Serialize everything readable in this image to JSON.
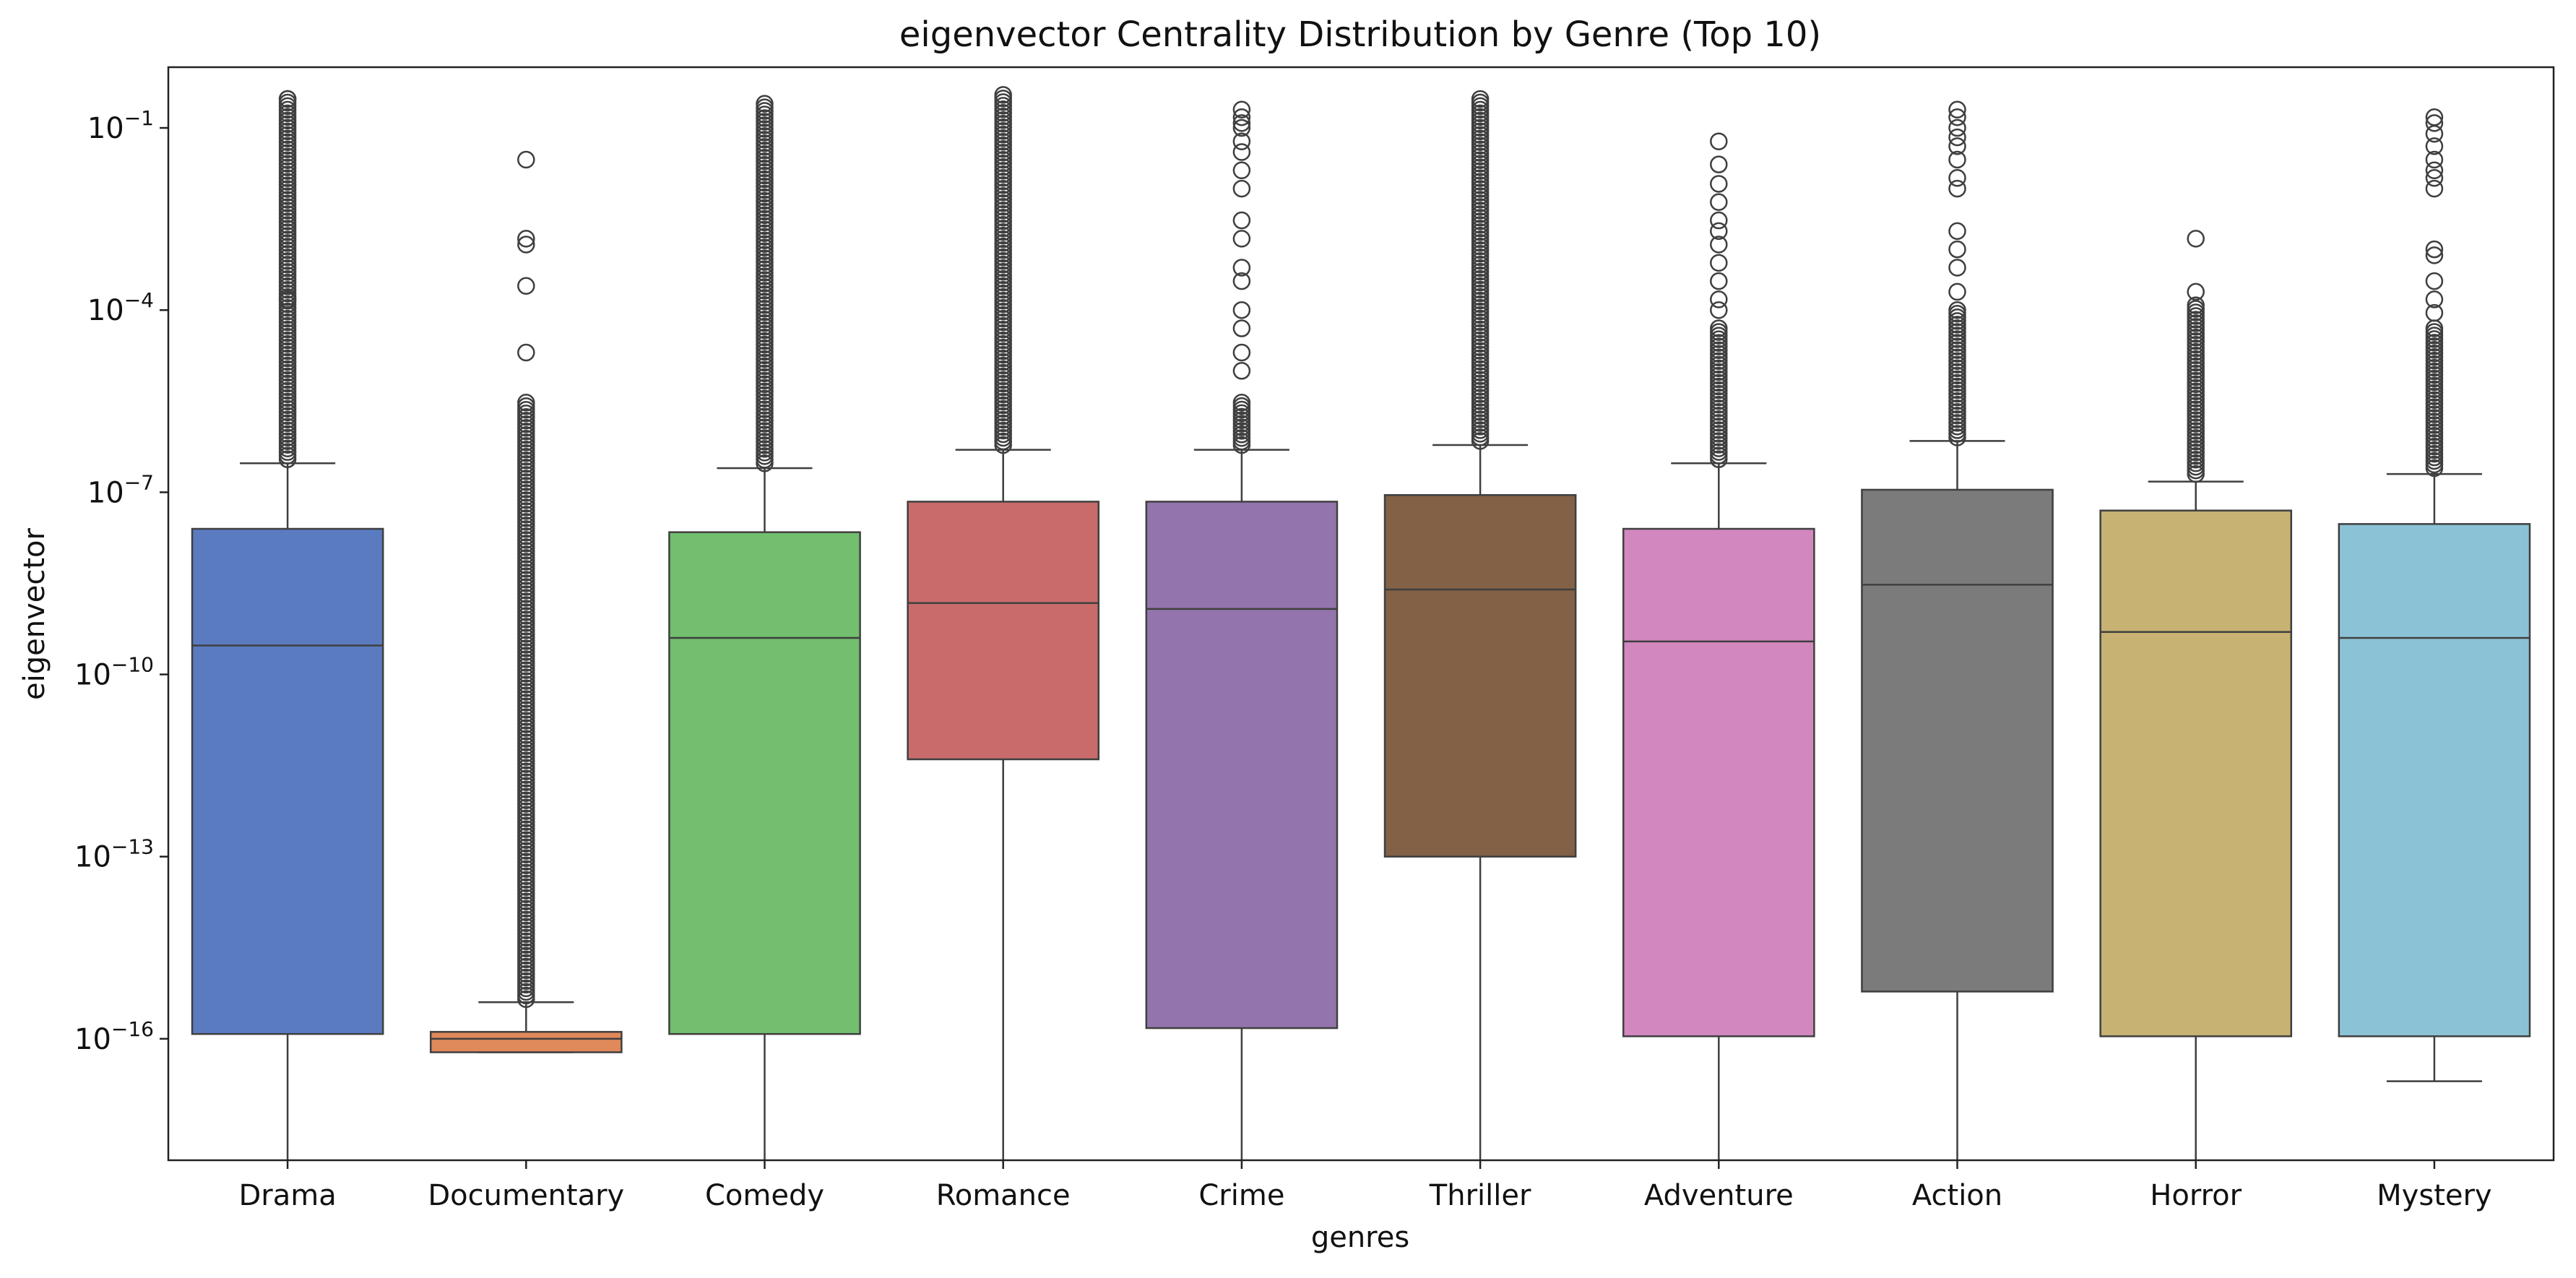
{
  "chart_data": {
    "type": "box",
    "title": "eigenvector Centrality Distribution by Genre (Top 10)",
    "xlabel": "genres",
    "ylabel": "eigenvector",
    "y_scale": "log",
    "ylim": [
      1e-18,
      1
    ],
    "y_ticks": [
      {
        "value": 1e-16,
        "base": "10",
        "exp": "−16"
      },
      {
        "value": 1e-13,
        "base": "10",
        "exp": "−13"
      },
      {
        "value": 1e-10,
        "base": "10",
        "exp": "−10"
      },
      {
        "value": 1e-07,
        "base": "10",
        "exp": "−7"
      },
      {
        "value": 0.0001,
        "base": "10",
        "exp": "−4"
      },
      {
        "value": 0.1,
        "base": "10",
        "exp": "−1"
      }
    ],
    "grid": false,
    "categories": [
      "Drama",
      "Documentary",
      "Comedy",
      "Romance",
      "Crime",
      "Thriller",
      "Adventure",
      "Action",
      "Horror",
      "Mystery"
    ],
    "colors": [
      "#5a7bc0",
      "#e0895b",
      "#72bf6f",
      "#c96b6b",
      "#9374ac",
      "#826146",
      "#d287bf",
      "#7b7b7b",
      "#c7b273",
      "#8cc2d6"
    ],
    "boxes": [
      {
        "lower_whisker": 1e-18,
        "q1": 1.2e-16,
        "median": 3e-10,
        "q3": 2.5e-08,
        "upper_whisker": 3e-07,
        "outliers_dense_from": 3.5e-07,
        "outliers_dense_to": 0.3,
        "outliers": [
          0.00015,
          0.3
        ]
      },
      {
        "lower_whisker": 6e-17,
        "q1": 6e-17,
        "median": 1e-16,
        "q3": 1.3e-16,
        "upper_whisker": 4e-16,
        "outliers_dense_from": 4.5e-16,
        "outliers_dense_to": 3e-06,
        "outliers": [
          2e-05,
          0.00025,
          0.0012,
          0.0015,
          0.03
        ]
      },
      {
        "lower_whisker": 1e-18,
        "q1": 1.2e-16,
        "median": 4e-10,
        "q3": 2.2e-08,
        "upper_whisker": 2.5e-07,
        "outliers_dense_from": 3e-07,
        "outliers_dense_to": 0.25,
        "outliers": []
      },
      {
        "lower_whisker": 1e-18,
        "q1": 4e-12,
        "median": 1.5e-09,
        "q3": 7e-08,
        "upper_whisker": 5e-07,
        "outliers_dense_from": 6e-07,
        "outliers_dense_to": 0.35,
        "outliers": []
      },
      {
        "lower_whisker": 1e-18,
        "q1": 1.5e-16,
        "median": 1.2e-09,
        "q3": 7e-08,
        "upper_whisker": 5e-07,
        "outliers_dense_from": 6e-07,
        "outliers_dense_to": 3e-06,
        "outliers": [
          1e-05,
          2e-05,
          5e-05,
          0.0001,
          0.0003,
          0.0005,
          0.0015,
          0.003,
          0.01,
          0.02,
          0.04,
          0.06,
          0.1,
          0.12,
          0.15,
          0.2
        ]
      },
      {
        "lower_whisker": 1e-18,
        "q1": 1e-13,
        "median": 2.5e-09,
        "q3": 9e-08,
        "upper_whisker": 6e-07,
        "outliers_dense_from": 7e-07,
        "outliers_dense_to": 0.3,
        "outliers": []
      },
      {
        "lower_whisker": 1e-18,
        "q1": 1.1e-16,
        "median": 3.5e-10,
        "q3": 2.5e-08,
        "upper_whisker": 3e-07,
        "outliers_dense_from": 3.5e-07,
        "outliers_dense_to": 5e-05,
        "outliers": [
          0.0001,
          0.00015,
          0.0003,
          0.0006,
          0.0012,
          0.002,
          0.003,
          0.006,
          0.012,
          0.025,
          0.06
        ]
      },
      {
        "lower_whisker": 1e-18,
        "q1": 6e-16,
        "median": 3e-09,
        "q3": 1.1e-07,
        "upper_whisker": 7e-07,
        "outliers_dense_from": 8e-07,
        "outliers_dense_to": 0.0001,
        "outliers": [
          0.0002,
          0.0005,
          0.001,
          0.002,
          0.01,
          0.015,
          0.03,
          0.05,
          0.07,
          0.1,
          0.15,
          0.2
        ]
      },
      {
        "lower_whisker": 1e-18,
        "q1": 1.1e-16,
        "median": 5e-10,
        "q3": 5e-08,
        "upper_whisker": 1.5e-07,
        "outliers_dense_from": 2e-07,
        "outliers_dense_to": 0.00012,
        "outliers": [
          0.0002,
          0.0015
        ]
      },
      {
        "lower_whisker": 2e-17,
        "q1": 1.1e-16,
        "median": 4e-10,
        "q3": 3e-08,
        "upper_whisker": 2e-07,
        "outliers_dense_from": 2.5e-07,
        "outliers_dense_to": 5e-05,
        "outliers": [
          9e-05,
          0.00015,
          0.0003,
          0.0008,
          0.001,
          0.01,
          0.015,
          0.02,
          0.03,
          0.05,
          0.08,
          0.12,
          0.15
        ]
      }
    ]
  }
}
